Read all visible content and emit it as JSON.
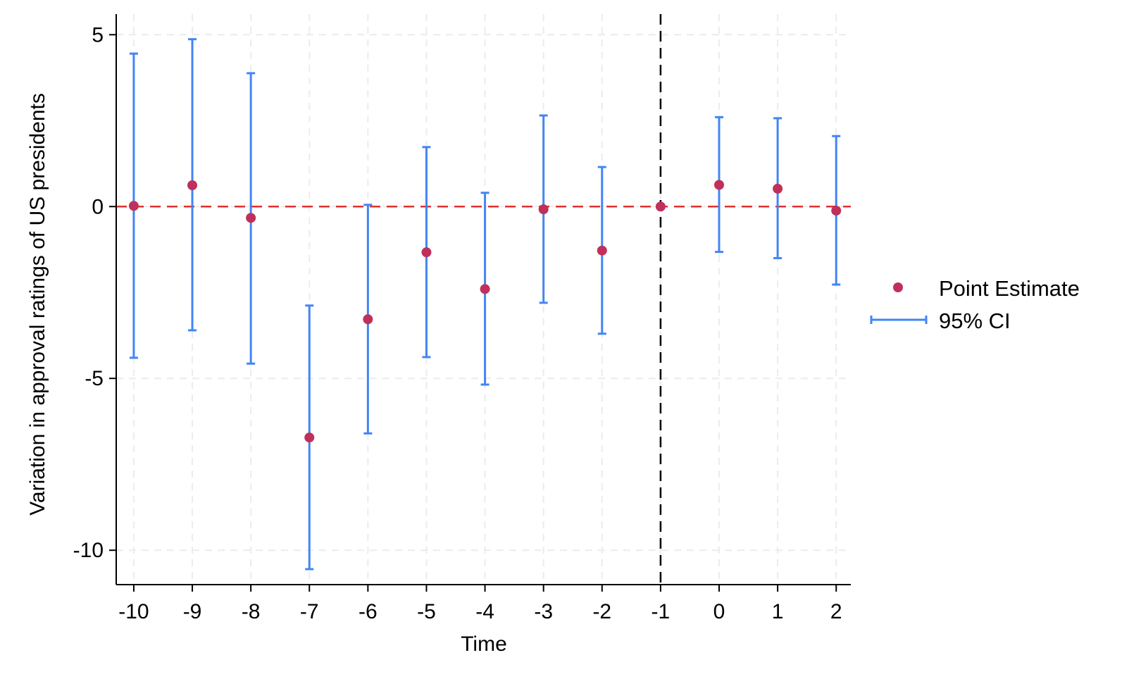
{
  "chart_data": {
    "type": "scatter",
    "title": "",
    "xlabel": "Time",
    "ylabel": "Variation in approval ratings of US presidents",
    "x_ticks": [
      "-10",
      "-9",
      "-8",
      "-7",
      "-6",
      "-5",
      "-4",
      "-3",
      "-2",
      "-1",
      "0",
      "1",
      "2"
    ],
    "y_ticks": [
      "5",
      "0",
      "-5",
      "-10"
    ],
    "xlim": [
      -10.3,
      2.25
    ],
    "ylim": [
      -11,
      5.6
    ],
    "grid": true,
    "legend_position": "right",
    "reference_lines": [
      {
        "orientation": "horizontal",
        "value": 0,
        "style": "dashed",
        "color": "#e0312d"
      },
      {
        "orientation": "vertical",
        "value": -1,
        "style": "dashed",
        "color": "#000000"
      }
    ],
    "series": [
      {
        "name": "Point Estimate",
        "kind": "point",
        "color": "#c0305a",
        "x": [
          -10,
          -9,
          -8,
          -7,
          -6,
          -5,
          -4,
          -3,
          -2,
          -1,
          0,
          1,
          2
        ],
        "y": [
          0.02,
          0.62,
          -0.33,
          -6.72,
          -3.28,
          -1.33,
          -2.4,
          -0.08,
          -1.28,
          0.0,
          0.63,
          0.52,
          -0.12
        ]
      },
      {
        "name": "95% CI",
        "kind": "errorbar",
        "color": "#4285f4",
        "x": [
          -10,
          -9,
          -8,
          -7,
          -6,
          -5,
          -4,
          -3,
          -2,
          0,
          1,
          2
        ],
        "lower": [
          -4.4,
          -3.6,
          -4.57,
          -10.55,
          -6.6,
          -4.38,
          -5.18,
          -2.8,
          -3.7,
          -1.32,
          -1.5,
          -2.27
        ],
        "upper": [
          4.45,
          4.87,
          3.88,
          -2.88,
          0.05,
          1.73,
          0.4,
          2.65,
          1.15,
          2.6,
          2.57,
          2.05
        ]
      }
    ]
  }
}
